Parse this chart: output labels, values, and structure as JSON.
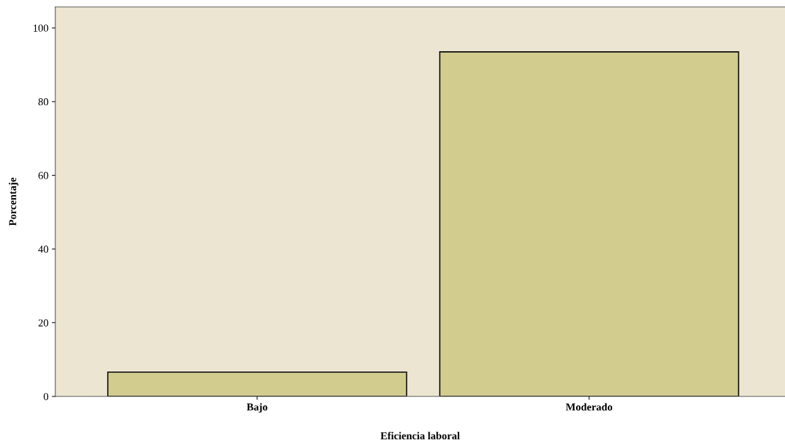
{
  "chart_data": {
    "type": "bar",
    "xlabel": "Eficiencia laboral",
    "ylabel": "Porcentaje",
    "categories": [
      "Bajo",
      "Moderado"
    ],
    "values": [
      6.6,
      93.5
    ],
    "color": "#d2cc8f",
    "ylim": [
      0,
      105.7
    ],
    "yticks": [
      0,
      20,
      40,
      60,
      80,
      100
    ],
    "grid": false,
    "legend": false
  }
}
